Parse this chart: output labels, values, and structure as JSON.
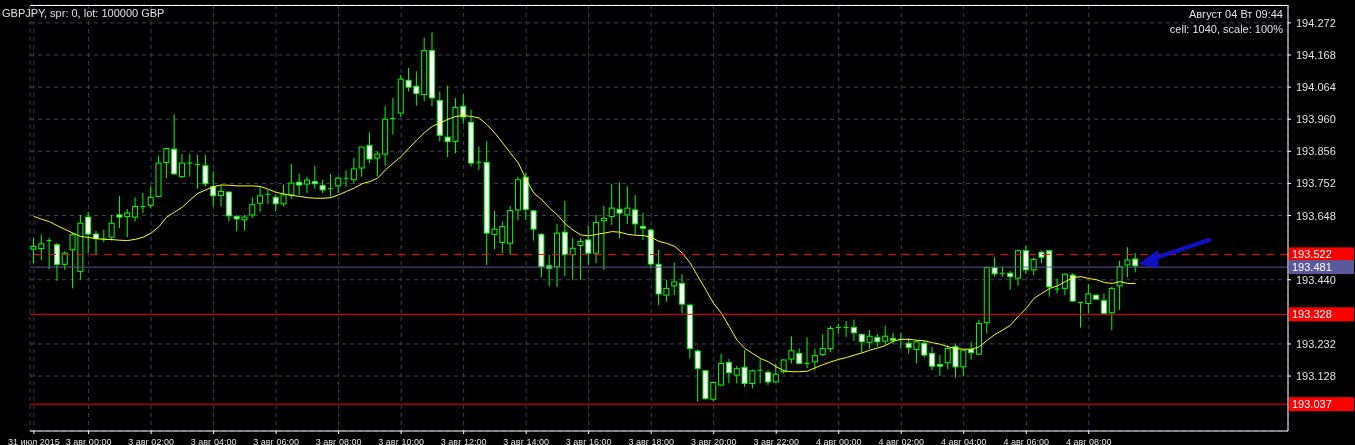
{
  "chart_data": {
    "type": "candlestick",
    "title": "GBPJPY, spr: 0, lot: 100000 GBP",
    "annotations": [
      "Август 04 Вт 09:44",
      "cell: 1040, scale: 100%"
    ],
    "categories": [
      "31 июл 2015",
      null,
      null,
      null,
      null,
      null,
      null,
      "3 авг 00:00",
      null,
      null,
      null,
      null,
      null,
      null,
      null,
      "3 авг 02:00",
      null,
      null,
      null,
      null,
      null,
      null,
      null,
      "3 авг 04:00",
      null,
      null,
      null,
      null,
      null,
      null,
      null,
      "3 авг 06:00",
      null,
      null,
      null,
      null,
      null,
      null,
      null,
      "3 авг 08:00",
      null,
      null,
      null,
      null,
      null,
      null,
      null,
      "3 авг 10:00",
      null,
      null,
      null,
      null,
      null,
      null,
      null,
      "3 авг 12:00",
      null,
      null,
      null,
      null,
      null,
      null,
      null,
      "3 авг 14:00",
      null,
      null,
      null,
      null,
      null,
      null,
      null,
      "3 авг 16:00",
      null,
      null,
      null,
      null,
      null,
      null,
      null,
      "3 авг 18:00",
      null,
      null,
      null,
      null,
      null,
      null,
      null,
      "3 авг 20:00",
      null,
      null,
      null,
      null,
      null,
      null,
      null,
      "3 авг 22:00",
      null,
      null,
      null,
      null,
      null,
      null,
      null,
      "4 авг 00:00",
      null,
      null,
      null,
      null,
      null,
      null,
      null,
      "4 авг 02:00",
      null,
      null,
      null,
      null,
      null,
      null,
      null,
      "4 авг 04:00",
      null,
      null,
      null,
      null,
      null,
      null,
      null,
      "4 авг 06:00",
      null,
      null,
      null,
      null,
      null,
      null,
      null,
      "4 авг 08:00",
      null,
      null,
      null,
      null,
      null,
      null
    ],
    "ohlc": [
      [
        193.539,
        193.575,
        193.494,
        193.548
      ],
      [
        193.541,
        193.586,
        193.504,
        193.556
      ],
      [
        193.567,
        193.575,
        193.474,
        193.567
      ],
      [
        193.553,
        193.559,
        193.437,
        193.49
      ],
      [
        193.49,
        193.532,
        193.472,
        193.526
      ],
      [
        193.537,
        193.591,
        193.412,
        193.586
      ],
      [
        193.467,
        193.65,
        193.44,
        193.623
      ],
      [
        193.643,
        193.66,
        193.526,
        193.588
      ],
      [
        193.588,
        193.598,
        193.521,
        193.573
      ],
      [
        193.572,
        193.602,
        193.562,
        193.572
      ],
      [
        193.578,
        193.65,
        193.567,
        193.623
      ],
      [
        193.65,
        193.712,
        193.607,
        193.643
      ],
      [
        193.645,
        193.669,
        193.578,
        193.656
      ],
      [
        193.643,
        193.707,
        193.629,
        193.677
      ],
      [
        193.677,
        193.721,
        193.656,
        193.677
      ],
      [
        193.681,
        193.744,
        193.672,
        193.707
      ],
      [
        193.71,
        193.84,
        193.707,
        193.818
      ],
      [
        193.82,
        193.867,
        193.769,
        193.865
      ],
      [
        193.863,
        193.975,
        193.78,
        193.783
      ],
      [
        193.774,
        193.847,
        193.769,
        193.818
      ],
      [
        193.818,
        193.848,
        193.774,
        193.818
      ],
      [
        193.813,
        193.844,
        193.735,
        193.813
      ],
      [
        193.809,
        193.844,
        193.742,
        193.751
      ],
      [
        193.742,
        193.791,
        193.677,
        193.712
      ],
      [
        193.713,
        193.748,
        193.677,
        193.726
      ],
      [
        193.724,
        193.726,
        193.629,
        193.647
      ],
      [
        193.645,
        193.65,
        193.598,
        193.637
      ],
      [
        193.634,
        193.65,
        193.599,
        193.643
      ],
      [
        193.65,
        193.707,
        193.64,
        193.683
      ],
      [
        193.688,
        193.742,
        193.66,
        193.712
      ],
      [
        193.717,
        193.731,
        193.686,
        193.717
      ],
      [
        193.707,
        193.717,
        193.661,
        193.686
      ],
      [
        193.686,
        193.748,
        193.677,
        193.715
      ],
      [
        193.715,
        193.815,
        193.702,
        193.753
      ],
      [
        193.756,
        193.783,
        193.715,
        193.747
      ],
      [
        193.75,
        193.774,
        193.721,
        193.763
      ],
      [
        193.758,
        193.809,
        193.735,
        193.751
      ],
      [
        193.745,
        193.764,
        193.721,
        193.731
      ],
      [
        193.735,
        193.782,
        193.71,
        193.735
      ],
      [
        193.744,
        193.774,
        193.721,
        193.769
      ],
      [
        193.769,
        193.794,
        193.742,
        193.769
      ],
      [
        193.764,
        193.835,
        193.751,
        193.799
      ],
      [
        193.802,
        193.87,
        193.774,
        193.87
      ],
      [
        193.875,
        193.917,
        193.818,
        193.831
      ],
      [
        193.834,
        193.856,
        193.774,
        193.847
      ],
      [
        193.847,
        194.002,
        193.81,
        193.96
      ],
      [
        193.962,
        194.029,
        193.91,
        193.962
      ],
      [
        193.98,
        194.104,
        193.967,
        194.09
      ],
      [
        194.086,
        194.126,
        194.05,
        194.064
      ],
      [
        194.067,
        194.115,
        194.004,
        194.043
      ],
      [
        194.04,
        194.224,
        194.018,
        194.182
      ],
      [
        194.182,
        194.242,
        194.002,
        194.029
      ],
      [
        194.021,
        194.05,
        193.888,
        193.908
      ],
      [
        193.902,
        194.069,
        193.837,
        193.888
      ],
      [
        193.888,
        194.028,
        193.85,
        193.998
      ],
      [
        194.002,
        194.04,
        193.945,
        193.967
      ],
      [
        193.95,
        193.991,
        193.807,
        193.818
      ],
      [
        193.821,
        193.872,
        193.796,
        193.821
      ],
      [
        193.82,
        193.89,
        193.488,
        193.591
      ],
      [
        193.587,
        193.663,
        193.539,
        193.604
      ],
      [
        193.561,
        193.629,
        193.526,
        193.612
      ],
      [
        193.558,
        193.679,
        193.521,
        193.664
      ],
      [
        193.666,
        193.774,
        193.632,
        193.764
      ],
      [
        193.772,
        193.787,
        193.634,
        193.668
      ],
      [
        193.663,
        193.666,
        193.567,
        193.604
      ],
      [
        193.587,
        193.591,
        193.448,
        193.482
      ],
      [
        193.485,
        193.521,
        193.42,
        193.477
      ],
      [
        193.482,
        193.621,
        193.417,
        193.591
      ],
      [
        193.594,
        193.695,
        193.452,
        193.521
      ],
      [
        193.521,
        193.575,
        193.44,
        193.542
      ],
      [
        193.551,
        193.575,
        193.44,
        193.564
      ],
      [
        193.569,
        193.615,
        193.488,
        193.526
      ],
      [
        193.526,
        193.65,
        193.494,
        193.625
      ],
      [
        193.631,
        193.68,
        193.472,
        193.639
      ],
      [
        193.645,
        193.751,
        193.618,
        193.672
      ],
      [
        193.668,
        193.755,
        193.575,
        193.656
      ],
      [
        193.65,
        193.742,
        193.621,
        193.672
      ],
      [
        193.666,
        193.715,
        193.585,
        193.621
      ],
      [
        193.613,
        193.656,
        193.569,
        193.607
      ],
      [
        193.601,
        193.606,
        193.477,
        193.491
      ],
      [
        193.49,
        193.537,
        193.358,
        193.394
      ],
      [
        193.39,
        193.44,
        193.369,
        193.412
      ],
      [
        193.42,
        193.496,
        193.39,
        193.433
      ],
      [
        193.428,
        193.458,
        193.331,
        193.361
      ],
      [
        193.358,
        193.363,
        193.185,
        193.217
      ],
      [
        193.209,
        193.214,
        193.045,
        193.153
      ],
      [
        193.145,
        193.147,
        193.052,
        193.055
      ],
      [
        193.053,
        193.109,
        193.045,
        193.107
      ],
      [
        193.099,
        193.199,
        193.096,
        193.169
      ],
      [
        193.172,
        193.183,
        193.104,
        193.139
      ],
      [
        193.131,
        193.161,
        193.104,
        193.152
      ],
      [
        193.156,
        193.212,
        193.093,
        193.104
      ],
      [
        193.104,
        193.149,
        193.088,
        193.145
      ],
      [
        193.147,
        193.185,
        193.104,
        193.147
      ],
      [
        193.14,
        193.147,
        193.099,
        193.109
      ],
      [
        193.109,
        193.169,
        193.107,
        193.134
      ],
      [
        193.142,
        193.183,
        193.136,
        193.18
      ],
      [
        193.183,
        193.257,
        193.169,
        193.21
      ],
      [
        193.201,
        193.217,
        193.166,
        193.169
      ],
      [
        193.169,
        193.253,
        193.153,
        193.169
      ],
      [
        193.174,
        193.217,
        193.147,
        193.194
      ],
      [
        193.198,
        193.263,
        193.193,
        193.217
      ],
      [
        193.217,
        193.29,
        193.206,
        193.282
      ],
      [
        193.285,
        193.298,
        193.266,
        193.285
      ],
      [
        193.285,
        193.306,
        193.255,
        193.285
      ],
      [
        193.285,
        193.311,
        193.242,
        193.268
      ],
      [
        193.263,
        193.266,
        193.204,
        193.239
      ],
      [
        193.237,
        193.277,
        193.217,
        193.257
      ],
      [
        193.253,
        193.264,
        193.223,
        193.239
      ],
      [
        193.241,
        193.291,
        193.228,
        193.257
      ],
      [
        193.25,
        193.268,
        193.231,
        193.244
      ],
      [
        193.247,
        193.268,
        193.217,
        193.247
      ],
      [
        193.234,
        193.25,
        193.201,
        193.221
      ],
      [
        193.214,
        193.245,
        193.169,
        193.239
      ],
      [
        193.234,
        193.243,
        193.188,
        193.196
      ],
      [
        193.201,
        193.223,
        193.147,
        193.16
      ],
      [
        193.165,
        193.196,
        193.128,
        193.16
      ],
      [
        193.171,
        193.228,
        193.15,
        193.217
      ],
      [
        193.223,
        193.234,
        193.123,
        193.158
      ],
      [
        193.158,
        193.214,
        193.128,
        193.212
      ],
      [
        193.214,
        193.239,
        193.182,
        193.204
      ],
      [
        193.199,
        193.311,
        193.196,
        193.298
      ],
      [
        193.301,
        193.482,
        193.266,
        193.479
      ],
      [
        193.479,
        193.512,
        193.45,
        193.459
      ],
      [
        193.461,
        193.482,
        193.45,
        193.461
      ],
      [
        193.461,
        193.468,
        193.407,
        193.45
      ],
      [
        193.445,
        193.537,
        193.421,
        193.534
      ],
      [
        193.534,
        193.55,
        193.459,
        193.472
      ],
      [
        193.472,
        193.512,
        193.455,
        193.506
      ],
      [
        193.529,
        193.534,
        193.494,
        193.513
      ],
      [
        193.534,
        193.534,
        193.385,
        193.417
      ],
      [
        193.41,
        193.444,
        193.396,
        193.41
      ],
      [
        193.412,
        193.461,
        193.39,
        193.458
      ],
      [
        193.455,
        193.461,
        193.369,
        193.371
      ],
      [
        193.366,
        193.369,
        193.285,
        193.366
      ],
      [
        193.363,
        193.426,
        193.331,
        193.394
      ],
      [
        193.39,
        193.393,
        193.374,
        193.377
      ],
      [
        193.372,
        193.396,
        193.329,
        193.331
      ],
      [
        193.333,
        193.417,
        193.277,
        193.412
      ],
      [
        193.42,
        193.501,
        193.342,
        193.482
      ],
      [
        193.488,
        193.545,
        193.448,
        193.504
      ],
      [
        193.507,
        193.526,
        193.464,
        193.485
      ]
    ],
    "series": [
      {
        "type": "line",
        "color": "#ffff00",
        "values": [
          193.645,
          193.636,
          193.628,
          193.615,
          193.603,
          193.591,
          193.58,
          193.577,
          193.573,
          193.571,
          193.57,
          193.568,
          193.567,
          193.571,
          193.578,
          193.591,
          193.612,
          193.643,
          193.659,
          193.675,
          193.699,
          193.72,
          193.731,
          193.742,
          193.747,
          193.746,
          193.744,
          193.744,
          193.744,
          193.742,
          193.733,
          193.723,
          193.718,
          193.713,
          193.71,
          193.706,
          193.704,
          193.704,
          193.706,
          193.715,
          193.726,
          193.737,
          193.751,
          193.758,
          193.769,
          193.796,
          193.818,
          193.839,
          193.866,
          193.893,
          193.917,
          193.937,
          193.948,
          193.96,
          193.969,
          193.972,
          193.969,
          193.964,
          193.942,
          193.915,
          193.883,
          193.85,
          193.818,
          193.764,
          193.72,
          193.699,
          193.672,
          193.65,
          193.621,
          193.601,
          193.585,
          193.582,
          193.587,
          193.591,
          193.596,
          193.594,
          193.587,
          193.584,
          193.583,
          193.578,
          193.564,
          193.558,
          193.548,
          193.526,
          193.494,
          193.45,
          193.407,
          193.363,
          193.331,
          193.288,
          193.244,
          193.217,
          193.201,
          193.185,
          193.174,
          193.158,
          193.145,
          193.142,
          193.142,
          193.144,
          193.155,
          193.165,
          193.174,
          193.182,
          193.188,
          193.196,
          193.203,
          193.212,
          193.219,
          193.227,
          193.241,
          193.247,
          193.247,
          193.244,
          193.242,
          193.236,
          193.231,
          193.223,
          193.217,
          193.215,
          193.215,
          193.223,
          193.244,
          193.263,
          193.277,
          193.293,
          193.322,
          193.347,
          193.38,
          193.396,
          193.412,
          193.42,
          193.434,
          193.447,
          193.45,
          193.444,
          193.44,
          193.431,
          193.428,
          193.434,
          193.428,
          193.428
        ]
      }
    ],
    "ylim": [
      192.95,
      194.33
    ],
    "yticks": [
      {
        "value": 194.272,
        "label": "194.272"
      },
      {
        "value": 194.168,
        "label": "194.168"
      },
      {
        "value": 194.064,
        "label": "194.064"
      },
      {
        "value": 193.96,
        "label": "193.960"
      },
      {
        "value": 193.856,
        "label": "193.856"
      },
      {
        "value": 193.752,
        "label": "193.752"
      },
      {
        "value": 193.648,
        "label": "193.648"
      },
      {
        "value": 193.44,
        "label": "193.440"
      },
      {
        "value": 193.232,
        "label": "193.232"
      },
      {
        "value": 193.128,
        "label": "193.128"
      }
    ],
    "ref_lines": [
      {
        "axis": "y",
        "value": 193.522,
        "label": "193.522",
        "color": "#ff0000",
        "line_style": "dashed"
      },
      {
        "axis": "y",
        "value": 193.481,
        "label": "193.481",
        "color": "#5a5a9a",
        "line_style": "solid"
      },
      {
        "axis": "y",
        "value": 193.328,
        "label": "193.328",
        "color": "#ff0000",
        "line_style": "solid"
      },
      {
        "axis": "y",
        "value": 193.037,
        "label": "193.037",
        "color": "#ff0000",
        "line_style": "solid"
      }
    ],
    "grid": true
  }
}
